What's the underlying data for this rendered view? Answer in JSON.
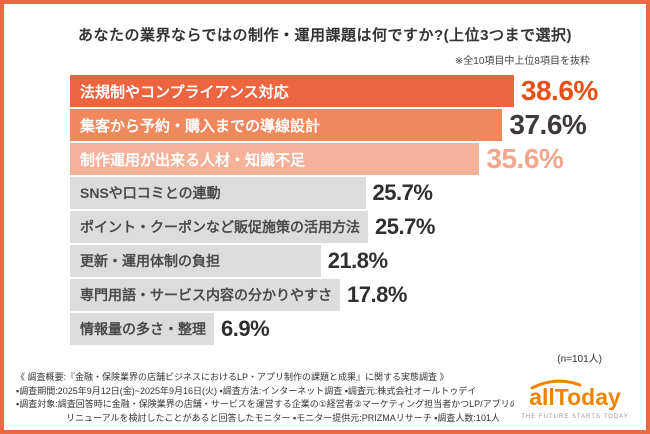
{
  "title": "あなたの業界ならではの制作・運用課題は何ですか?(上位3つまで選択)",
  "note": "※全10項目中上位8項目を抜粋",
  "n_note": "(n=101人)",
  "chart_data": {
    "type": "bar",
    "orientation": "horizontal",
    "title": "あなたの業界ならではの制作・運用課題は何ですか?(上位3つまで選択)",
    "xlim": [
      0,
      40
    ],
    "value_suffix": "%",
    "grid": false,
    "legend": "none",
    "categories": [
      "法規制やコンプライアンス対応",
      "集客から予約・購入までの導線設計",
      "制作運用が出来る人材・知識不足",
      "SNSや口コミとの連動",
      "ポイント・クーポンなど販促施策の活用方法",
      "更新・運用体制の負担",
      "専門用語・サービス内容の分かりやすさ",
      "情報量の多さ・整理"
    ],
    "values": [
      38.6,
      37.6,
      35.6,
      25.7,
      25.7,
      21.8,
      17.8,
      6.9
    ],
    "rows": [
      {
        "label": "法規制やコンプライアンス対応",
        "value": 38.6,
        "display": "38.6%",
        "bar_color": "#ed6440",
        "label_color": "#ffffff",
        "value_color": "#e94e14",
        "emphasis": true
      },
      {
        "label": "集客から予約・購入までの導線設計",
        "value": 37.6,
        "display": "37.6%",
        "bar_color": "#f0875d",
        "label_color": "#ffffff",
        "value_color": "#3e3a39",
        "emphasis": true
      },
      {
        "label": "制作運用が出来る人材・知識不足",
        "value": 35.6,
        "display": "35.6%",
        "bar_color": "#f5b199",
        "label_color": "#ffffff",
        "value_color": "#f4a78b",
        "emphasis": true
      },
      {
        "label": "SNSや口コミとの連動",
        "value": 25.7,
        "display": "25.7%",
        "bar_color": "#dcdcdc",
        "label_color": "#4a4a4a",
        "value_color": "#2f2f2f",
        "emphasis": false
      },
      {
        "label": "ポイント・クーポンなど販促施策の活用方法",
        "value": 25.7,
        "display": "25.7%",
        "bar_color": "#dcdcdc",
        "label_color": "#4a4a4a",
        "value_color": "#2f2f2f",
        "emphasis": false
      },
      {
        "label": "更新・運用体制の負担",
        "value": 21.8,
        "display": "21.8%",
        "bar_color": "#dcdcdc",
        "label_color": "#4a4a4a",
        "value_color": "#2f2f2f",
        "emphasis": false
      },
      {
        "label": "専門用語・サービス内容の分かりやすさ",
        "value": 17.8,
        "display": "17.8%",
        "bar_color": "#dcdcdc",
        "label_color": "#4a4a4a",
        "value_color": "#2f2f2f",
        "emphasis": false
      },
      {
        "label": "情報量の多さ・整理",
        "value": 6.9,
        "display": "6.9%",
        "bar_color": "#dcdcdc",
        "label_color": "#4a4a4a",
        "value_color": "#2f2f2f",
        "emphasis": false
      }
    ]
  },
  "footer": {
    "lines": [
      "《 調査概要:『金融・保険業界の店舗ビジネスにおけるLP・アプリ制作の課題と成果』に関する実態調査 》",
      "▪調査期間:2025年9月12日(金)~2025年9月16日(火) ▪調査方法:インターネット調査 ▪調査元:株式会社オールトゥデイ",
      "▪調査対象:調査回答時に金融・保険業界の店舗・サービスを運営する企業の①経営者②マーケティング担当者かつLP/アプリの制作・",
      "リニューアルを検討したことがあると回答したモニター ▪モニター提供元:PRIZMAリサーチ ▪調査人数:101人"
    ]
  },
  "logo": {
    "name": "allToday",
    "tagline": "THE FUTURE STARTS TODAY"
  },
  "colors": {
    "border": "#ed6a41",
    "accent": "#ed6440",
    "logo_orange": "#f08300",
    "gray_bar": "#dcdcdc"
  }
}
